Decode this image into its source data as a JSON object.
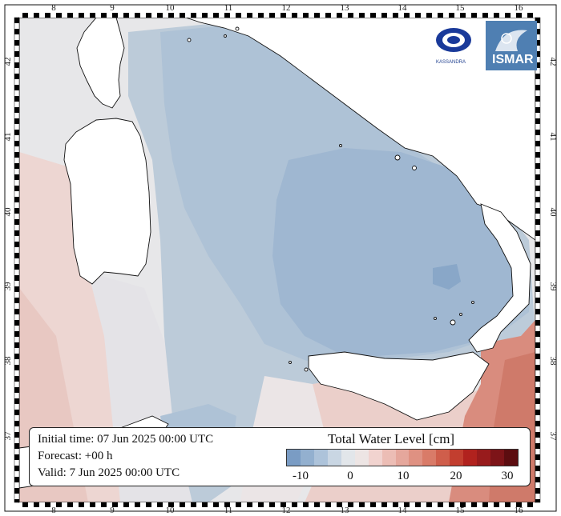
{
  "map": {
    "lon_ticks": [
      "8",
      "9",
      "10",
      "11",
      "12",
      "13",
      "14",
      "15",
      "16"
    ],
    "lat_ticks": [
      "42",
      "41",
      "40",
      "39",
      "38",
      "37"
    ],
    "land_color": "#ffffff",
    "coast_color": "#111111"
  },
  "info": {
    "initial_time": "Initial time: 07 Jun 2025 00:00 UTC",
    "forecast": "Forecast: +00 h",
    "valid": "Valid:  7 Jun 2025 00:00 UTC"
  },
  "legend": {
    "title": "Total Water Level [cm]",
    "colors": [
      "#7a9cc4",
      "#93b0cf",
      "#adc3da",
      "#c9d6e3",
      "#e2e6ea",
      "#ede5e4",
      "#f1d3cf",
      "#ecbdb5",
      "#e5a79c",
      "#df9182",
      "#d97b68",
      "#cf5e4b",
      "#c23e2f",
      "#b1221e",
      "#981b1c",
      "#7d1418",
      "#5c0d10"
    ],
    "tick_labels": [
      "-10",
      "0",
      "10",
      "20",
      "30"
    ]
  },
  "logos": {
    "left_name": "KASSANDRA",
    "right_name": "ISMAR"
  }
}
